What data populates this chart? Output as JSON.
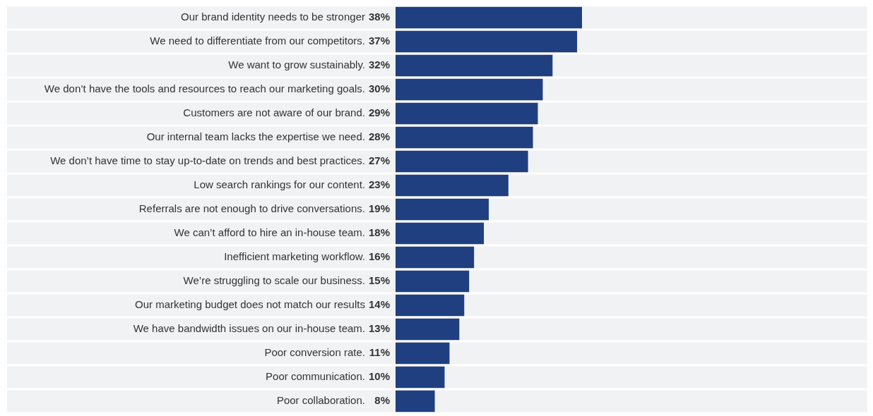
{
  "chart_data": {
    "type": "bar",
    "orientation": "horizontal",
    "categories": [
      "Our brand identity needs to be stronger",
      "We need to differentiate from our competitors.",
      "We want to grow sustainably.",
      "We don’t have the tools and resources to reach our marketing goals.",
      "Customers are not aware of our brand.",
      "Our internal team lacks the expertise we need.",
      "We don’t have time to stay up-to-date on trends and best practices.",
      "Low search rankings for our content.",
      "Referrals are not enough to drive conversations.",
      "We can’t afford to hire an in-house team.",
      "Inefficient marketing workflow.",
      "We’re struggling to scale our business.",
      "Our marketing budget does not match our results",
      "We have bandwidth issues on our in-house team.",
      "Poor conversion rate.",
      "Poor communication.",
      "Poor collaboration."
    ],
    "values": [
      38,
      37,
      32,
      30,
      29,
      28,
      27,
      23,
      19,
      18,
      16,
      15,
      14,
      13,
      11,
      10,
      8
    ],
    "value_labels": [
      "38%",
      "37%",
      "32%",
      "30%",
      "29%",
      "28%",
      "27%",
      "23%",
      "19%",
      "18%",
      "16%",
      "15%",
      "14%",
      "13%",
      "11%",
      "10%",
      "8%"
    ],
    "color": "#1f3f80",
    "tick_labels": false,
    "legend": false
  }
}
